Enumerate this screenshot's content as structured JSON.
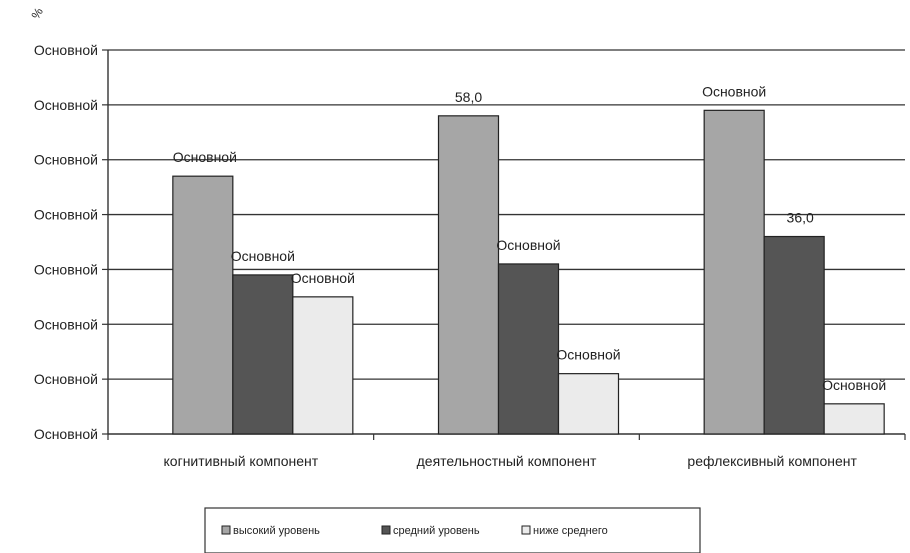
{
  "chart_data": {
    "type": "bar",
    "ylabel": "%",
    "ylim": [
      0,
      70
    ],
    "yticks": [
      0,
      10,
      20,
      30,
      40,
      50,
      60,
      70
    ],
    "ytick_labels": [
      "Основной",
      "Основной",
      "Основной",
      "Основной",
      "Основной",
      "Основной",
      "Основной",
      "Основной"
    ],
    "categories": [
      "когнитивный компонент",
      "деятельностный компонент",
      "рефлексивный компонент"
    ],
    "series": [
      {
        "name": "высокий уровень",
        "values": [
          47.0,
          58.0,
          59.0
        ],
        "labels": [
          "Основной",
          "58,0",
          "Основной"
        ],
        "color": "#a6a6a6"
      },
      {
        "name": "средний уровень",
        "values": [
          29.0,
          31.0,
          36.0
        ],
        "labels": [
          "Основной",
          "Основной",
          "36,0"
        ],
        "color": "#555555"
      },
      {
        "name": "ниже среднего",
        "values": [
          25.0,
          11.0,
          5.5
        ],
        "labels": [
          "Основной",
          "Основной",
          "Основной"
        ],
        "color": "#ebebeb"
      }
    ],
    "grid": true,
    "legend_position": "bottom"
  }
}
